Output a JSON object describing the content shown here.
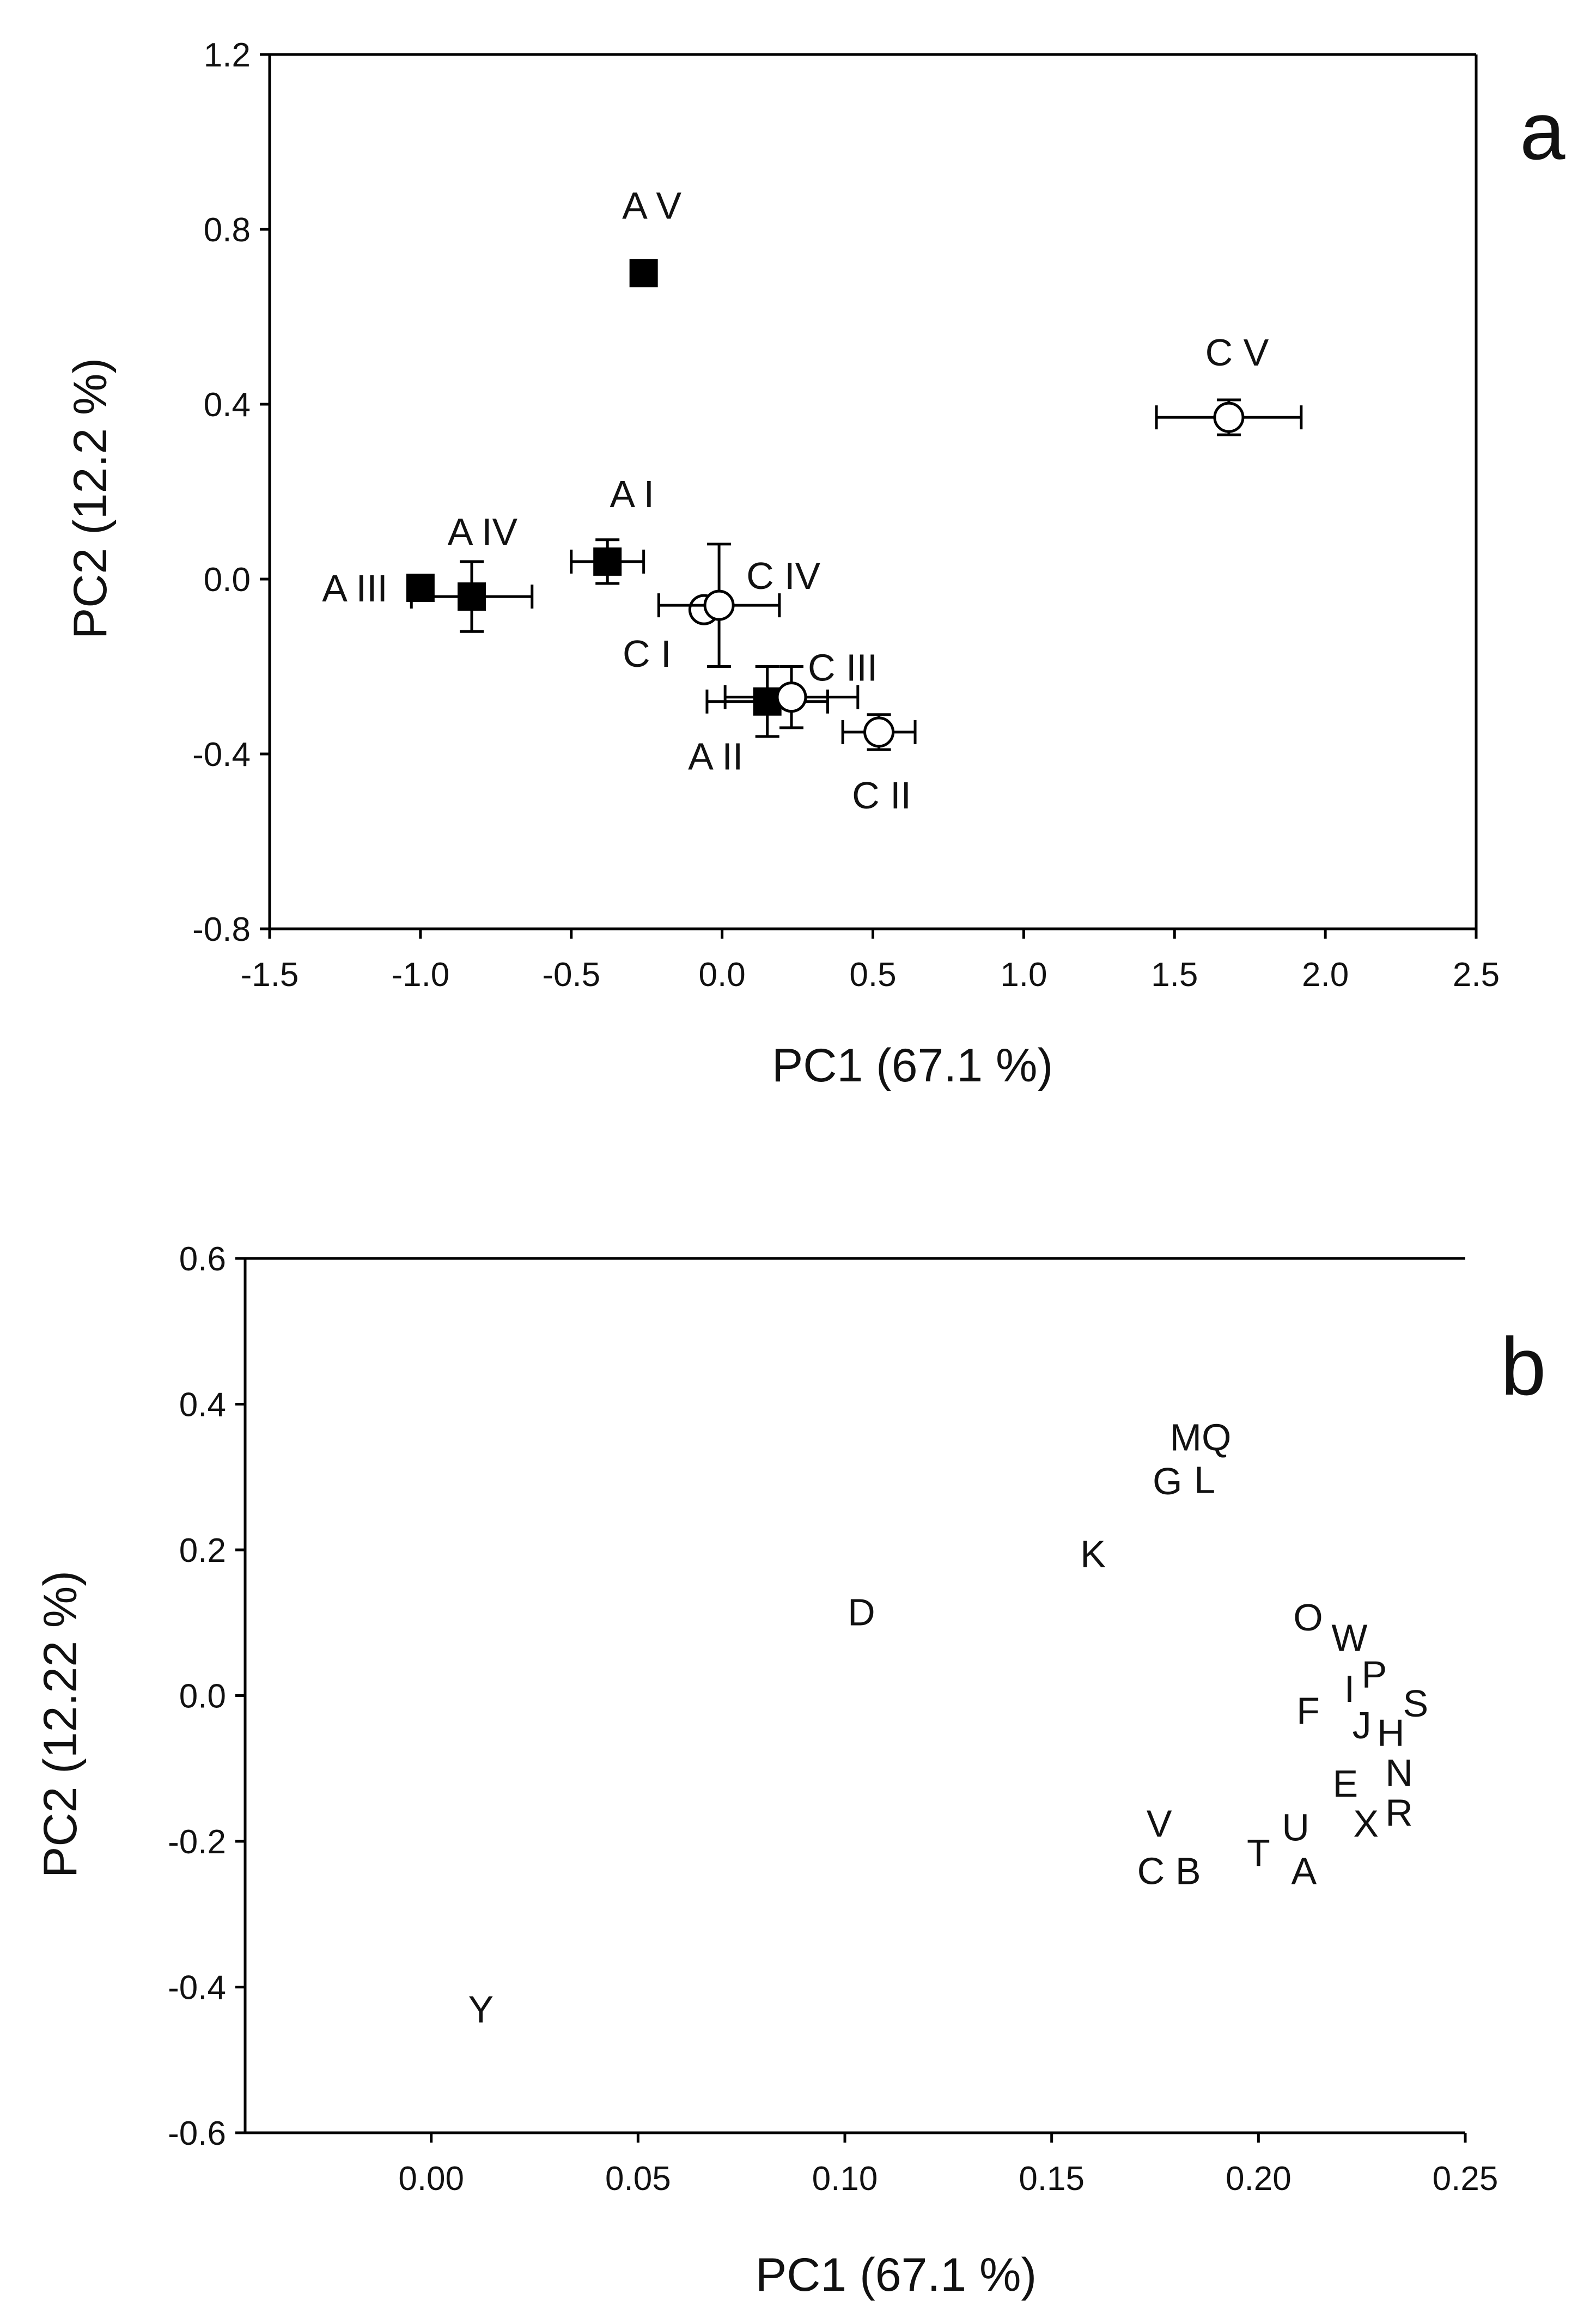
{
  "colors": {
    "axis": "#000000",
    "marker_fill_A": "#000000",
    "marker_fill_C": "#ffffff",
    "text": "#111111",
    "background": "#ffffff"
  },
  "chart_data": [
    {
      "type": "scatter",
      "panel_label": "a",
      "xlabel": "PC1 (67.1 %)",
      "ylabel": "PC2 (12.2 %)",
      "xlim": [
        -1.5,
        2.5
      ],
      "ylim": [
        -0.8,
        1.2
      ],
      "xticks": [
        -1.5,
        -1.0,
        -0.5,
        0.0,
        0.5,
        1.0,
        1.5,
        2.0,
        2.5
      ],
      "xtick_labels": [
        "-1.5",
        "-1.0",
        "-0.5",
        "0.0",
        "0.5",
        "1.0",
        "1.5",
        "2.0",
        "2.5"
      ],
      "yticks": [
        -0.8,
        -0.4,
        0.0,
        0.4,
        0.8,
        1.2
      ],
      "ytick_labels": [
        "-0.8",
        "-0.4",
        "0.0",
        "0.4",
        "0.8",
        "1.2"
      ],
      "grid": false,
      "series": [
        {
          "name": "A",
          "marker": "filled-square",
          "points": [
            {
              "label": "A I",
              "x": -0.38,
              "y": 0.04,
              "xerr": 0.12,
              "yerr": 0.05
            },
            {
              "label": "A II",
              "x": 0.15,
              "y": -0.28,
              "xerr": 0.2,
              "yerr": 0.08
            },
            {
              "label": "A III",
              "x": -1.0,
              "y": -0.02,
              "xerr": 0.0,
              "yerr": 0.02
            },
            {
              "label": "A IV",
              "x": -0.83,
              "y": -0.04,
              "xerr": 0.2,
              "yerr": 0.08
            },
            {
              "label": "A V",
              "x": -0.26,
              "y": 0.7,
              "xerr": 0.02,
              "yerr": 0.02
            }
          ]
        },
        {
          "name": "C",
          "marker": "open-circle",
          "points": [
            {
              "label": "C I",
              "x": -0.06,
              "y": -0.07,
              "xerr": 0.0,
              "yerr": 0.0
            },
            {
              "label": "C II",
              "x": 0.52,
              "y": -0.35,
              "xerr": 0.12,
              "yerr": 0.04
            },
            {
              "label": "C III",
              "x": 0.23,
              "y": -0.27,
              "xerr": 0.22,
              "yerr": 0.07
            },
            {
              "label": "C IV",
              "x": -0.01,
              "y": -0.06,
              "xerr": 0.2,
              "yerr": 0.14
            },
            {
              "label": "C V",
              "x": 1.68,
              "y": 0.37,
              "xerr": 0.24,
              "yerr": 0.04
            }
          ]
        }
      ]
    },
    {
      "type": "scatter",
      "panel_label": "b",
      "xlabel": "PC1 (67.1 %)",
      "ylabel": "PC2 (12.22 %)",
      "xlim": [
        -0.045,
        0.25
      ],
      "ylim": [
        -0.6,
        0.6
      ],
      "xticks": [
        0.0,
        0.05,
        0.1,
        0.15,
        0.2,
        0.25
      ],
      "xtick_labels": [
        "0.00",
        "0.05",
        "0.10",
        "0.15",
        "0.20",
        "0.25"
      ],
      "yticks": [
        -0.6,
        -0.4,
        -0.2,
        0.0,
        0.2,
        0.4,
        0.6
      ],
      "ytick_labels": [
        "-0.6",
        "-0.4",
        "-0.2",
        "0.0",
        "0.2",
        "0.4",
        "0.6"
      ],
      "grid": false,
      "points": [
        {
          "label": "MQ",
          "x": 0.186,
          "y": 0.355
        },
        {
          "label": "G",
          "x": 0.178,
          "y": 0.295
        },
        {
          "label": "L",
          "x": 0.187,
          "y": 0.297
        },
        {
          "label": "K",
          "x": 0.16,
          "y": 0.195
        },
        {
          "label": "D",
          "x": 0.104,
          "y": 0.115
        },
        {
          "label": "O",
          "x": 0.212,
          "y": 0.108
        },
        {
          "label": "W",
          "x": 0.222,
          "y": 0.08
        },
        {
          "label": "P",
          "x": 0.228,
          "y": 0.03
        },
        {
          "label": "I",
          "x": 0.222,
          "y": 0.01
        },
        {
          "label": "S",
          "x": 0.238,
          "y": -0.01
        },
        {
          "label": "F",
          "x": 0.212,
          "y": -0.02
        },
        {
          "label": "J",
          "x": 0.225,
          "y": -0.04
        },
        {
          "label": "H",
          "x": 0.232,
          "y": -0.05
        },
        {
          "label": "N",
          "x": 0.234,
          "y": -0.105
        },
        {
          "label": "E",
          "x": 0.221,
          "y": -0.12
        },
        {
          "label": "R",
          "x": 0.234,
          "y": -0.16
        },
        {
          "label": "X",
          "x": 0.226,
          "y": -0.175
        },
        {
          "label": "V",
          "x": 0.176,
          "y": -0.175
        },
        {
          "label": "U",
          "x": 0.209,
          "y": -0.18
        },
        {
          "label": "T",
          "x": 0.2,
          "y": -0.215
        },
        {
          "label": "C",
          "x": 0.174,
          "y": -0.24
        },
        {
          "label": "B",
          "x": 0.183,
          "y": -0.24
        },
        {
          "label": "A",
          "x": 0.211,
          "y": -0.24
        },
        {
          "label": "Y",
          "x": 0.012,
          "y": -0.43
        }
      ]
    }
  ]
}
